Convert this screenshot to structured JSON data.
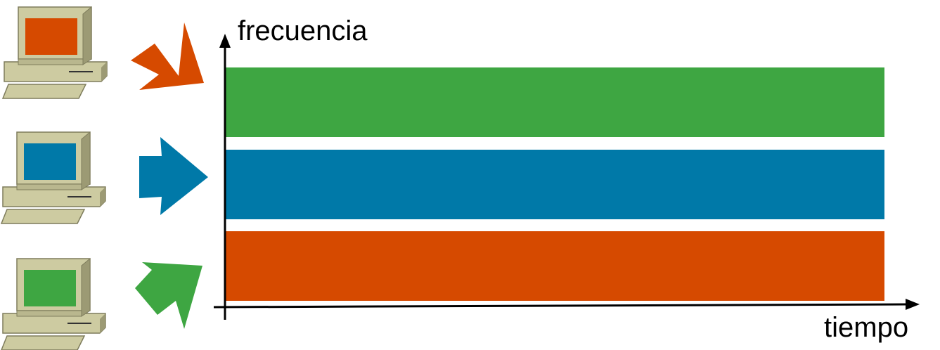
{
  "axes": {
    "y_label": "frecuencia",
    "x_label": "tiempo"
  },
  "colors": {
    "green": "#3ea642",
    "blue": "#0079a8",
    "orange": "#d64a00",
    "computer_body": "#cdcba1",
    "computer_dark": "#9c9a74",
    "computer_shadow": "#7e7c5c",
    "axis": "#000000"
  },
  "channels": [
    {
      "name": "channel-top",
      "color": "green"
    },
    {
      "name": "channel-middle",
      "color": "blue"
    },
    {
      "name": "channel-bottom",
      "color": "orange"
    }
  ],
  "stations": [
    {
      "name": "computer-top",
      "screen_color": "orange",
      "arrow_icon": "arrow-down-right-icon"
    },
    {
      "name": "computer-middle",
      "screen_color": "blue",
      "arrow_icon": "arrow-right-icon"
    },
    {
      "name": "computer-bottom",
      "screen_color": "green",
      "arrow_icon": "arrow-up-right-icon"
    }
  ]
}
